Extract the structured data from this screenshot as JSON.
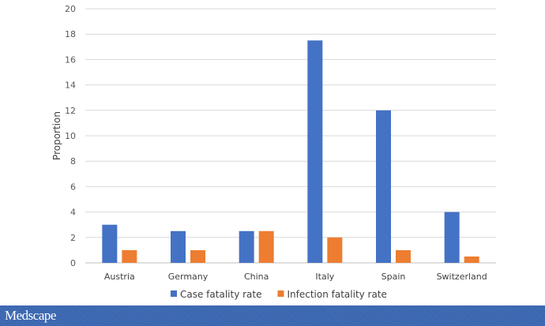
{
  "chart_data": {
    "type": "bar",
    "title": "",
    "xlabel": "",
    "ylabel": "Proportion",
    "ylim": [
      0,
      20
    ],
    "yticks": [
      0,
      2,
      4,
      6,
      8,
      10,
      12,
      14,
      16,
      18,
      20
    ],
    "grid": true,
    "legend_position": "bottom",
    "categories": [
      "Austria",
      "Germany",
      "China",
      "Italy",
      "Spain",
      "Switzerland"
    ],
    "series": [
      {
        "name": "Case fatality rate",
        "color": "#4472c4",
        "values": [
          3,
          2.5,
          2.5,
          17.5,
          12,
          4
        ]
      },
      {
        "name": "Infection fatality rate",
        "color": "#ed7d31",
        "values": [
          1,
          1,
          2.5,
          2,
          1,
          0.5
        ]
      }
    ]
  },
  "banner": {
    "brand": "Medscape",
    "color": "#3a66b0"
  }
}
